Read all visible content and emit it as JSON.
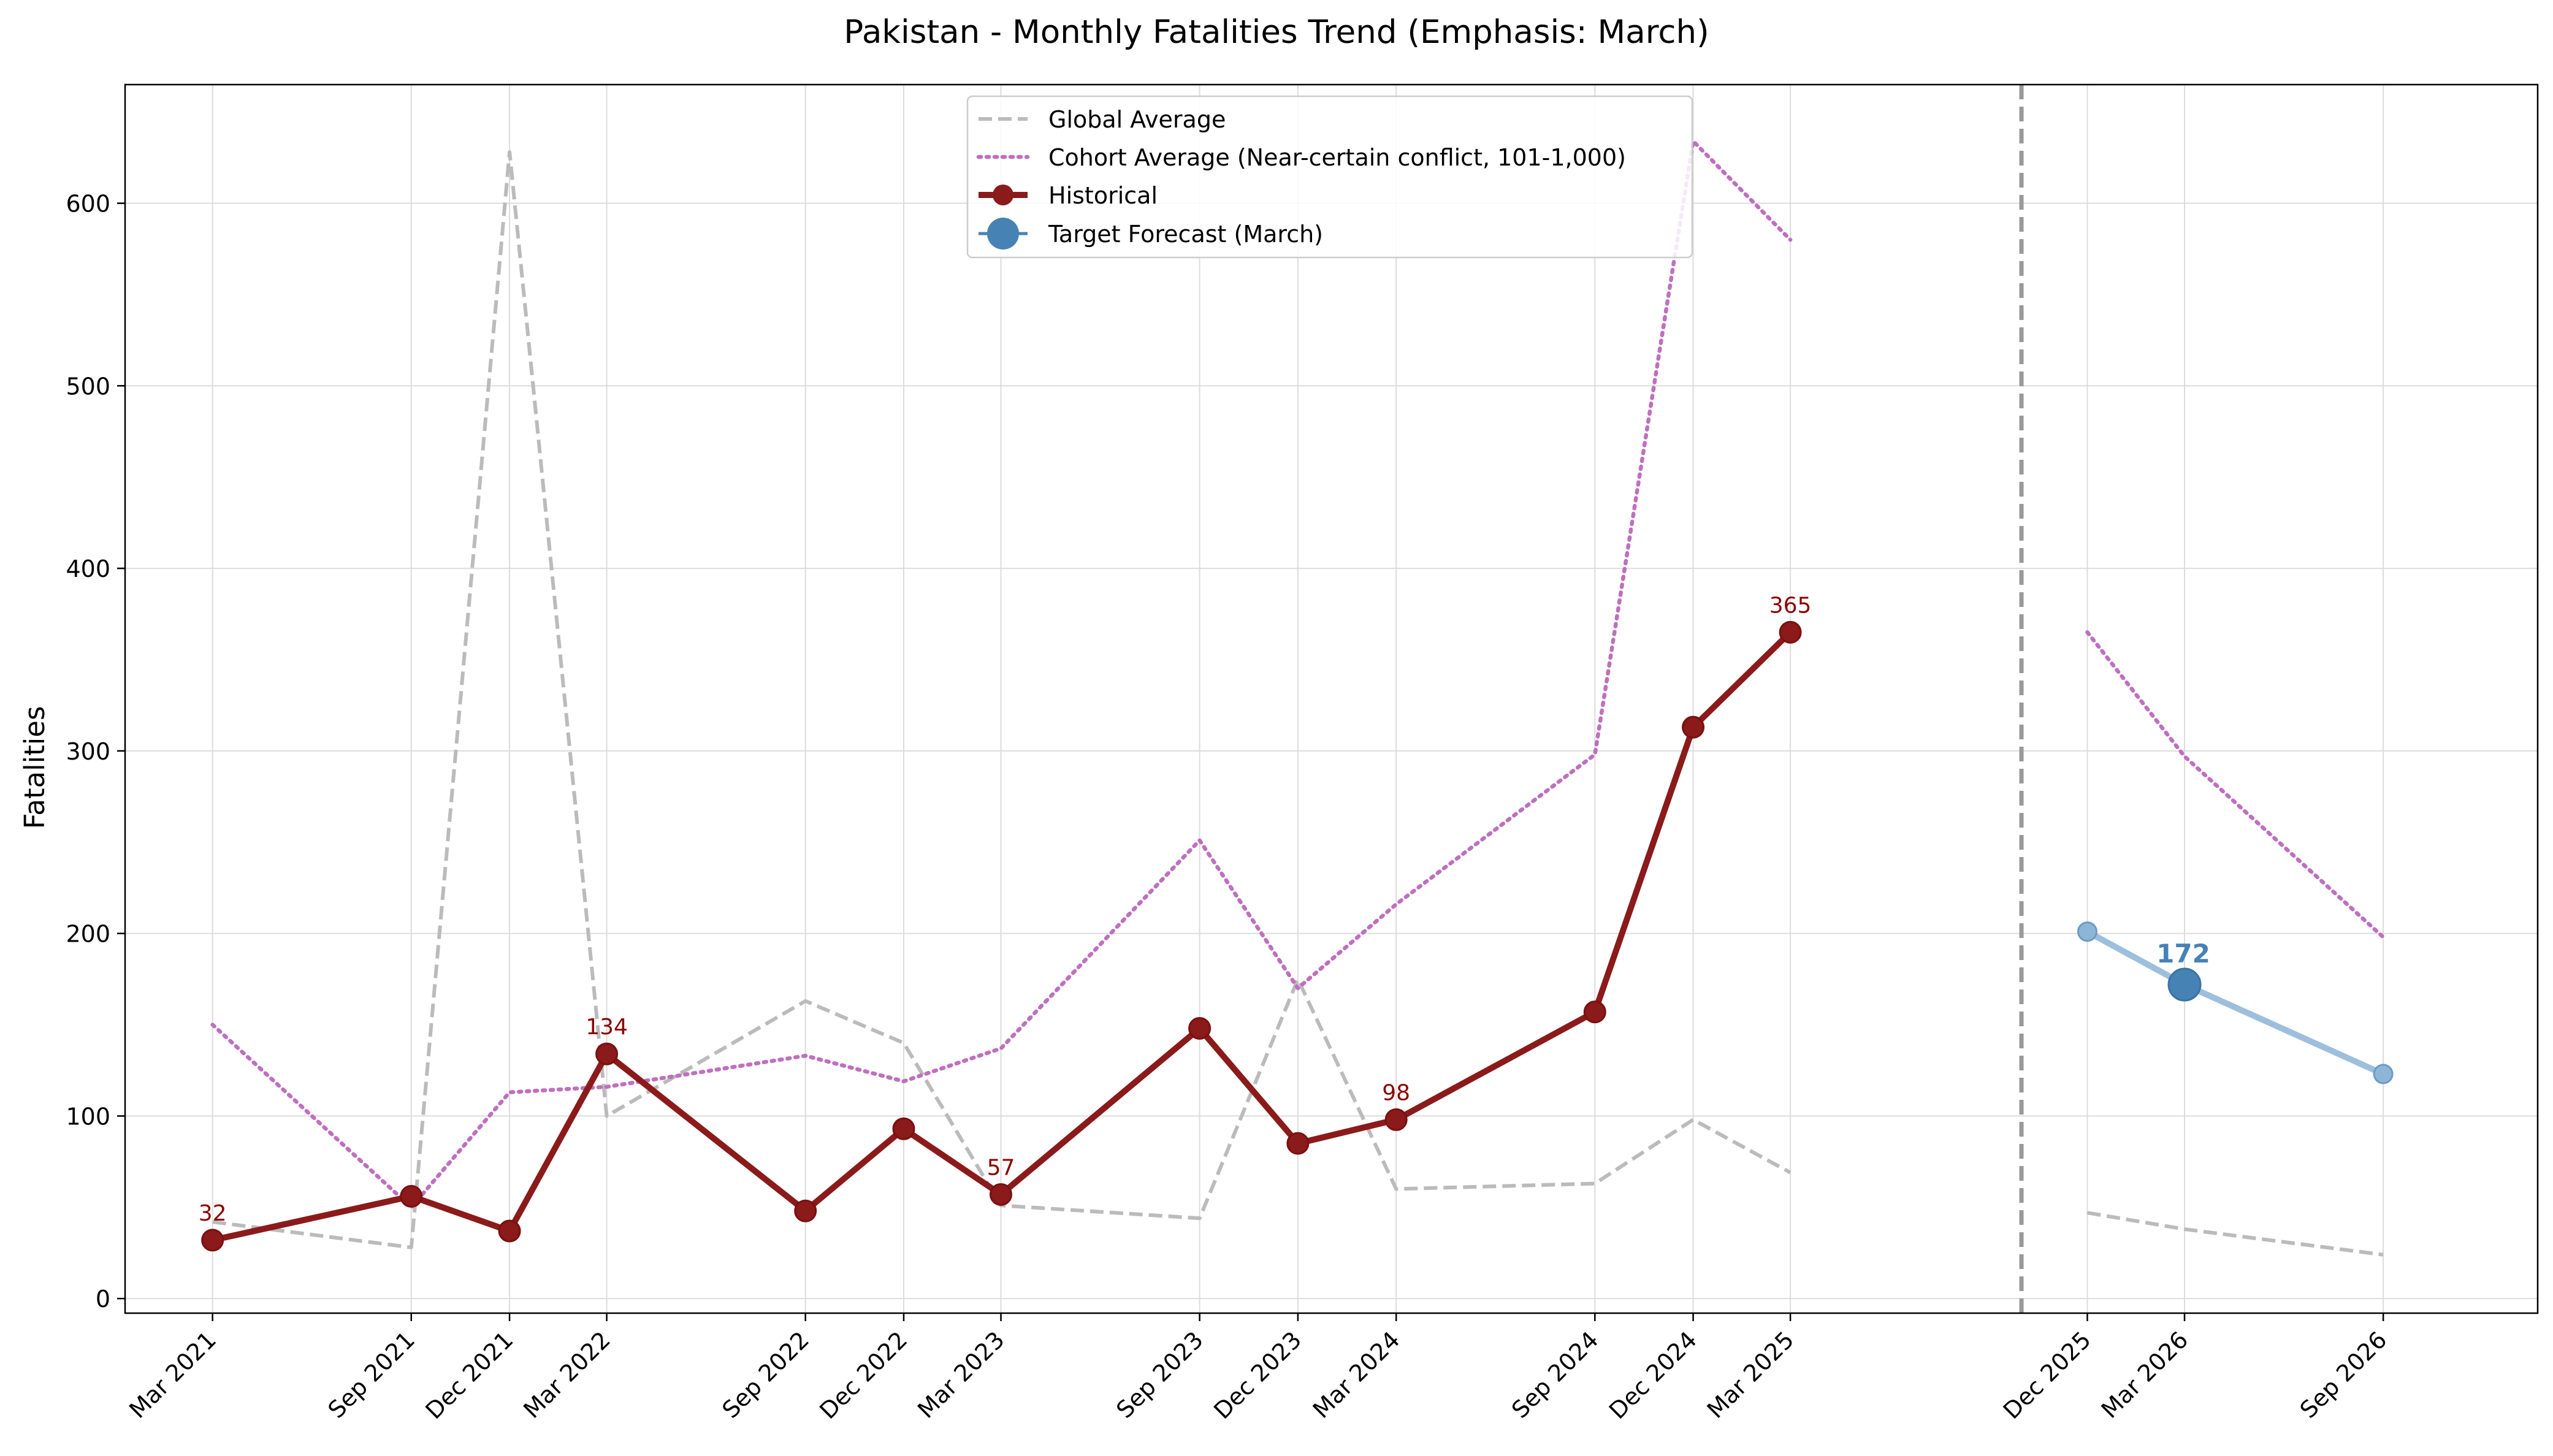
{
  "chart_data": {
    "type": "line",
    "title": "Pakistan - Monthly Fatalities Trend (Emphasis: March)",
    "xlabel": "",
    "ylabel": "Fatalities",
    "ylim": [
      -8,
      665
    ],
    "yticks": [
      0,
      100,
      200,
      300,
      400,
      500,
      600
    ],
    "xlim": [
      "2020-12-10",
      "2027-01-22"
    ],
    "xticks": [
      {
        "date": "2021-03-01",
        "label": "Mar 2021"
      },
      {
        "date": "2021-09-01",
        "label": "Sep 2021"
      },
      {
        "date": "2021-12-01",
        "label": "Dec 2021"
      },
      {
        "date": "2022-03-01",
        "label": "Mar 2022"
      },
      {
        "date": "2022-09-01",
        "label": "Sep 2022"
      },
      {
        "date": "2022-12-01",
        "label": "Dec 2022"
      },
      {
        "date": "2023-03-01",
        "label": "Mar 2023"
      },
      {
        "date": "2023-09-01",
        "label": "Sep 2023"
      },
      {
        "date": "2023-12-01",
        "label": "Dec 2023"
      },
      {
        "date": "2024-03-01",
        "label": "Mar 2024"
      },
      {
        "date": "2024-09-01",
        "label": "Sep 2024"
      },
      {
        "date": "2024-12-01",
        "label": "Dec 2024"
      },
      {
        "date": "2025-03-01",
        "label": "Mar 2025"
      },
      {
        "date": "2025-12-01",
        "label": "Dec 2025"
      },
      {
        "date": "2026-03-01",
        "label": "Mar 2026"
      },
      {
        "date": "2026-09-01",
        "label": "Sep 2026"
      }
    ],
    "vline": {
      "date": "2025-10-01",
      "style": "dashed",
      "color": "#999999"
    },
    "grid": true,
    "legend_position": "top-center",
    "series": [
      {
        "name": "Global Average",
        "style": "dashed",
        "color": "#bbbbbb",
        "segments": [
          [
            {
              "x": "2021-03-01",
              "y": 42
            },
            {
              "x": "2021-09-01",
              "y": 28
            },
            {
              "x": "2021-12-01",
              "y": 628
            },
            {
              "x": "2022-03-01",
              "y": 100
            },
            {
              "x": "2022-09-01",
              "y": 163
            },
            {
              "x": "2022-12-01",
              "y": 140
            },
            {
              "x": "2023-03-01",
              "y": 51
            },
            {
              "x": "2023-09-01",
              "y": 44
            },
            {
              "x": "2023-12-01",
              "y": 175
            },
            {
              "x": "2024-03-01",
              "y": 60
            },
            {
              "x": "2024-09-01",
              "y": 63
            },
            {
              "x": "2024-12-01",
              "y": 98
            },
            {
              "x": "2025-03-01",
              "y": 69
            }
          ],
          [
            {
              "x": "2025-12-01",
              "y": 47
            },
            {
              "x": "2026-03-01",
              "y": 38
            },
            {
              "x": "2026-09-01",
              "y": 24
            }
          ]
        ]
      },
      {
        "name": "Cohort Average (Near-certain conflict, 101-1,000)",
        "style": "dotted",
        "color": "#bf6fbf",
        "segments": [
          [
            {
              "x": "2021-03-01",
              "y": 150
            },
            {
              "x": "2021-09-01",
              "y": 50
            },
            {
              "x": "2021-12-01",
              "y": 113
            },
            {
              "x": "2022-03-01",
              "y": 116
            },
            {
              "x": "2022-09-01",
              "y": 133
            },
            {
              "x": "2022-12-01",
              "y": 119
            },
            {
              "x": "2023-03-01",
              "y": 137
            },
            {
              "x": "2023-09-01",
              "y": 251
            },
            {
              "x": "2023-12-01",
              "y": 170
            },
            {
              "x": "2024-03-01",
              "y": 216
            },
            {
              "x": "2024-09-01",
              "y": 298
            },
            {
              "x": "2024-12-01",
              "y": 634
            },
            {
              "x": "2025-03-01",
              "y": 580
            }
          ],
          [
            {
              "x": "2025-12-01",
              "y": 365
            },
            {
              "x": "2026-03-01",
              "y": 297
            },
            {
              "x": "2026-09-01",
              "y": 198
            }
          ]
        ]
      },
      {
        "name": "Historical",
        "style": "solid",
        "color": "#8b1a1a",
        "segments": [
          [
            {
              "x": "2021-03-01",
              "y": 32
            },
            {
              "x": "2021-09-01",
              "y": 56
            },
            {
              "x": "2021-12-01",
              "y": 37
            },
            {
              "x": "2022-03-01",
              "y": 134
            },
            {
              "x": "2022-09-01",
              "y": 48
            },
            {
              "x": "2022-12-01",
              "y": 93
            },
            {
              "x": "2023-03-01",
              "y": 57
            },
            {
              "x": "2023-09-01",
              "y": 148
            },
            {
              "x": "2023-12-01",
              "y": 85
            },
            {
              "x": "2024-03-01",
              "y": 98
            },
            {
              "x": "2024-09-01",
              "y": 157
            },
            {
              "x": "2024-12-01",
              "y": 313
            },
            {
              "x": "2025-03-01",
              "y": 365
            }
          ]
        ]
      },
      {
        "name": "Forecast",
        "style": "solid",
        "color": "#9dbfdc",
        "segments": [
          [
            {
              "x": "2025-12-01",
              "y": 201
            },
            {
              "x": "2026-03-01",
              "y": 172
            },
            {
              "x": "2026-09-01",
              "y": 123
            }
          ]
        ]
      }
    ],
    "target_forecast": {
      "name": "Target Forecast (March)",
      "x": "2026-03-01",
      "y": 172,
      "label": "172",
      "color": "#4682b4"
    },
    "annotations": [
      {
        "x": "2021-03-01",
        "y": 32,
        "text": "32"
      },
      {
        "x": "2022-03-01",
        "y": 134,
        "text": "134"
      },
      {
        "x": "2023-03-01",
        "y": 57,
        "text": "57"
      },
      {
        "x": "2024-03-01",
        "y": 98,
        "text": "98"
      },
      {
        "x": "2025-03-01",
        "y": 365,
        "text": "365"
      }
    ],
    "legend": [
      {
        "key": "global",
        "label": "Global Average"
      },
      {
        "key": "cohort",
        "label": "Cohort Average (Near-certain conflict, 101-1,000)"
      },
      {
        "key": "historical",
        "label": "Historical"
      },
      {
        "key": "target",
        "label": "Target Forecast (March)"
      }
    ]
  }
}
